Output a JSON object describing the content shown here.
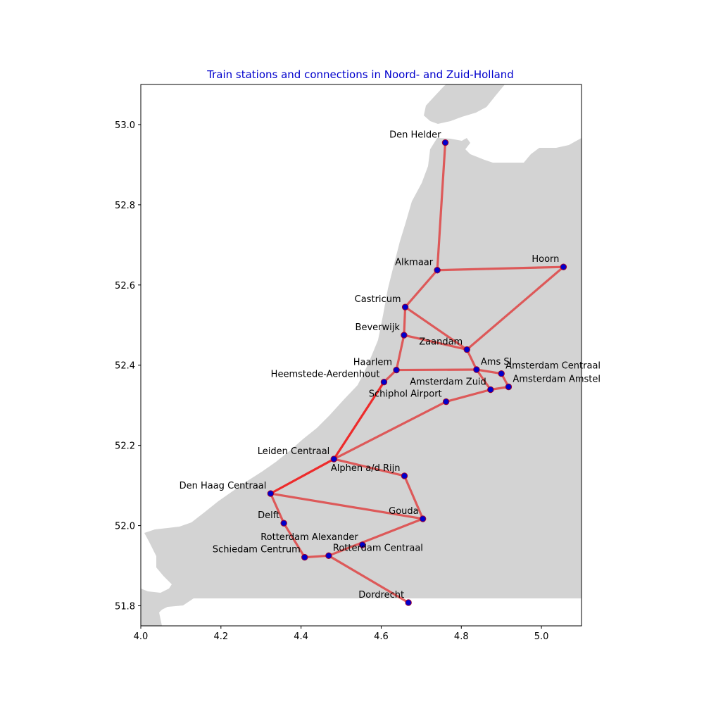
{
  "chart_data": {
    "type": "map",
    "title": "Train stations and connections in Noord- and Zuid-Holland",
    "title_color": "#0000cc",
    "xlim": [
      4.0,
      5.1
    ],
    "ylim": [
      51.75,
      53.1
    ],
    "xticks": [
      4.0,
      4.2,
      4.4,
      4.6,
      4.8,
      5.0
    ],
    "yticks": [
      51.8,
      52.0,
      52.2,
      52.4,
      52.6,
      52.8,
      53.0
    ],
    "land_color": "#d3d3d3",
    "edge_color": "#e03030",
    "highlight_edge_color": "#ee2222",
    "station_fill": "#0000cc",
    "station_outline": "#990033",
    "stations": [
      {
        "name": "Den Helder",
        "lon": 4.76,
        "lat": 52.955,
        "anchor": "end"
      },
      {
        "name": "Alkmaar",
        "lon": 4.74,
        "lat": 52.637,
        "anchor": "end"
      },
      {
        "name": "Hoorn",
        "lon": 5.055,
        "lat": 52.645,
        "anchor": "end"
      },
      {
        "name": "Castricum",
        "lon": 4.66,
        "lat": 52.545,
        "anchor": "end"
      },
      {
        "name": "Beverwijk",
        "lon": 4.657,
        "lat": 52.475,
        "anchor": "end"
      },
      {
        "name": "Zaandam",
        "lon": 4.814,
        "lat": 52.439,
        "anchor": "end"
      },
      {
        "name": "Haarlem",
        "lon": 4.638,
        "lat": 52.388,
        "anchor": "end"
      },
      {
        "name": "Heemstede-Aerdenhout",
        "lon": 4.607,
        "lat": 52.358,
        "anchor": "end"
      },
      {
        "name": "Ams Sl",
        "lon": 4.838,
        "lat": 52.389,
        "anchor": "start"
      },
      {
        "name": "Amsterdam Centraal",
        "lon": 4.9,
        "lat": 52.379,
        "anchor": "start"
      },
      {
        "name": "Amsterdam Zuid",
        "lon": 4.873,
        "lat": 52.339,
        "anchor": "end"
      },
      {
        "name": "Amsterdam Amstel",
        "lon": 4.918,
        "lat": 52.346,
        "anchor": "start"
      },
      {
        "name": "Schiphol Airport",
        "lon": 4.762,
        "lat": 52.309,
        "anchor": "end"
      },
      {
        "name": "Leiden Centraal",
        "lon": 4.482,
        "lat": 52.166,
        "anchor": "end"
      },
      {
        "name": "Alphen a/d Rijn",
        "lon": 4.658,
        "lat": 52.124,
        "anchor": "end"
      },
      {
        "name": "Den Haag Centraal",
        "lon": 4.324,
        "lat": 52.08,
        "anchor": "end"
      },
      {
        "name": "Gouda",
        "lon": 4.704,
        "lat": 52.017,
        "anchor": "end"
      },
      {
        "name": "Delft",
        "lon": 4.357,
        "lat": 52.006,
        "anchor": "end"
      },
      {
        "name": "Rotterdam Alexander",
        "lon": 4.553,
        "lat": 51.952,
        "anchor": "end"
      },
      {
        "name": "Rotterdam Centraal",
        "lon": 4.469,
        "lat": 51.925,
        "anchor": "start"
      },
      {
        "name": "Schiedam Centrum",
        "lon": 4.409,
        "lat": 51.921,
        "anchor": "end"
      },
      {
        "name": "Dordrecht",
        "lon": 4.668,
        "lat": 51.808,
        "anchor": "end"
      }
    ],
    "connections": [
      [
        "Den Helder",
        "Alkmaar"
      ],
      [
        "Alkmaar",
        "Hoorn"
      ],
      [
        "Alkmaar",
        "Castricum"
      ],
      [
        "Hoorn",
        "Zaandam"
      ],
      [
        "Castricum",
        "Beverwijk"
      ],
      [
        "Castricum",
        "Zaandam"
      ],
      [
        "Beverwijk",
        "Zaandam"
      ],
      [
        "Beverwijk",
        "Haarlem"
      ],
      [
        "Zaandam",
        "Ams Sl"
      ],
      [
        "Haarlem",
        "Ams Sl"
      ],
      [
        "Haarlem",
        "Heemstede-Aerdenhout"
      ],
      [
        "Ams Sl",
        "Amsterdam Centraal"
      ],
      [
        "Ams Sl",
        "Amsterdam Zuid"
      ],
      [
        "Amsterdam Centraal",
        "Amsterdam Amstel"
      ],
      [
        "Amsterdam Amstel",
        "Amsterdam Zuid"
      ],
      [
        "Amsterdam Zuid",
        "Schiphol Airport"
      ],
      [
        "Schiphol Airport",
        "Leiden Centraal"
      ],
      [
        "Leiden Centraal",
        "Alphen a/d Rijn"
      ],
      [
        "Alphen a/d Rijn",
        "Gouda"
      ],
      [
        "Den Haag Centraal",
        "Gouda"
      ],
      [
        "Den Haag Centraal",
        "Delft"
      ],
      [
        "Delft",
        "Schiedam Centrum"
      ],
      [
        "Schiedam Centrum",
        "Rotterdam Centraal"
      ],
      [
        "Rotterdam Centraal",
        "Gouda"
      ],
      [
        "Rotterdam Centraal",
        "Dordrecht"
      ]
    ],
    "highlighted_connections": [
      [
        "Heemstede-Aerdenhout",
        "Leiden Centraal"
      ],
      [
        "Leiden Centraal",
        "Den Haag Centraal"
      ]
    ]
  }
}
